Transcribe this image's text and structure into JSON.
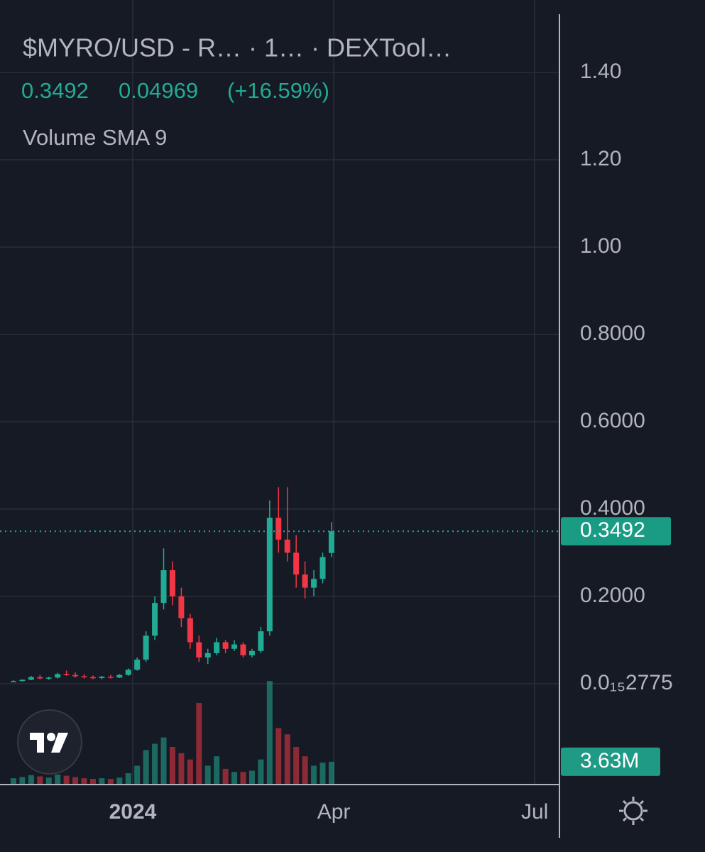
{
  "chart_data": {
    "type": "candlestick",
    "title": "$MYRO/USD - R…  · 1…  · DEXTool…",
    "last": 0.3492,
    "change": 0.04969,
    "change_percent": {
      "value": 16.59,
      "label": "(+16.59%)"
    },
    "indicator": "Volume SMA 9",
    "up_color": "#22ab94",
    "down_color": "#f23645",
    "x": [
      -54,
      -50,
      -46,
      -42,
      -38,
      -34,
      -30,
      -26,
      -22,
      -18,
      -14,
      -10,
      -6,
      -2,
      2,
      6,
      10,
      14,
      18,
      22,
      26,
      30,
      34,
      38,
      42,
      46,
      50,
      54,
      58,
      62,
      66,
      70,
      74,
      78,
      82,
      86,
      90
    ],
    "open": [
      0.005,
      0.006,
      0.009,
      0.015,
      0.012,
      0.014,
      0.022,
      0.02,
      0.017,
      0.015,
      0.013,
      0.016,
      0.014,
      0.02,
      0.032,
      0.055,
      0.11,
      0.185,
      0.26,
      0.2,
      0.15,
      0.095,
      0.06,
      0.07,
      0.095,
      0.08,
      0.09,
      0.065,
      0.075,
      0.12,
      0.38,
      0.33,
      0.3,
      0.25,
      0.22,
      0.24,
      0.2995
    ],
    "high": [
      0.008,
      0.01,
      0.018,
      0.02,
      0.016,
      0.025,
      0.03,
      0.026,
      0.022,
      0.019,
      0.018,
      0.02,
      0.022,
      0.035,
      0.06,
      0.12,
      0.2,
      0.31,
      0.28,
      0.22,
      0.16,
      0.11,
      0.08,
      0.105,
      0.1,
      0.1,
      0.095,
      0.08,
      0.13,
      0.42,
      0.45,
      0.45,
      0.34,
      0.28,
      0.26,
      0.3,
      0.37
    ],
    "low": [
      0.004,
      0.005,
      0.008,
      0.01,
      0.009,
      0.012,
      0.018,
      0.014,
      0.012,
      0.01,
      0.01,
      0.012,
      0.013,
      0.018,
      0.03,
      0.05,
      0.1,
      0.17,
      0.18,
      0.13,
      0.08,
      0.05,
      0.045,
      0.065,
      0.07,
      0.075,
      0.06,
      0.06,
      0.07,
      0.11,
      0.3,
      0.28,
      0.22,
      0.195,
      0.2,
      0.23,
      0.29
    ],
    "close": [
      0.006,
      0.009,
      0.015,
      0.012,
      0.014,
      0.022,
      0.02,
      0.017,
      0.015,
      0.013,
      0.016,
      0.014,
      0.02,
      0.032,
      0.055,
      0.11,
      0.185,
      0.26,
      0.2,
      0.15,
      0.095,
      0.06,
      0.07,
      0.095,
      0.08,
      0.09,
      0.065,
      0.075,
      0.12,
      0.38,
      0.33,
      0.3,
      0.25,
      0.22,
      0.24,
      0.29,
      0.3492
    ],
    "volume": [
      1.0,
      1.2,
      1.5,
      1.3,
      1.1,
      1.6,
      1.4,
      1.2,
      1.0,
      0.9,
      1.0,
      0.9,
      1.1,
      1.8,
      3.0,
      5.5,
      6.5,
      7.5,
      6.0,
      5.0,
      4.0,
      13.0,
      3.0,
      4.5,
      2.5,
      2.0,
      2.0,
      2.2,
      4.0,
      16.5,
      9.0,
      8.0,
      6.0,
      4.5,
      3.0,
      3.5,
      3.63
    ],
    "volume_last": {
      "value": 3.63,
      "label": "3.63M"
    },
    "vlim": [
      0,
      125
    ],
    "xlim": [
      -60.1,
      193.2
    ],
    "xticks": [
      {
        "value": 0,
        "label": "2024"
      },
      {
        "value": 91,
        "label": "Apr"
      },
      {
        "value": 182,
        "label": "Jul"
      }
    ],
    "ylim": [
      -0.231,
      1.566
    ],
    "yticks": [
      {
        "value": 0,
        "label": "0.0₁₅2775"
      },
      {
        "value": 0.2,
        "label": "0.2000"
      },
      {
        "value": 0.4,
        "label": "0.4000"
      },
      {
        "value": 0.6,
        "label": "0.6000"
      },
      {
        "value": 0.8,
        "label": "0.8000"
      },
      {
        "value": 1.0,
        "label": "1.00"
      },
      {
        "value": 1.2,
        "label": "1.20"
      },
      {
        "value": 1.4,
        "label": "1.40"
      }
    ],
    "grid": true
  }
}
